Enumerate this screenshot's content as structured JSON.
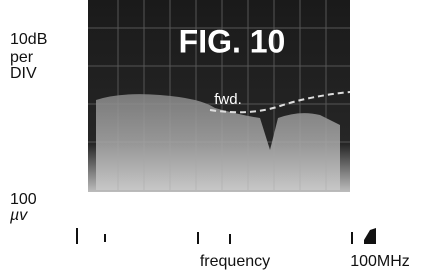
{
  "figure": {
    "title": "FIG. 10",
    "scale_label": [
      "10dB",
      "per",
      "DIV"
    ],
    "bottom_label": [
      "100",
      "µv"
    ],
    "trace_label": "fwd.",
    "x_label": "frequency",
    "x_end_label": "100MHz"
  }
}
